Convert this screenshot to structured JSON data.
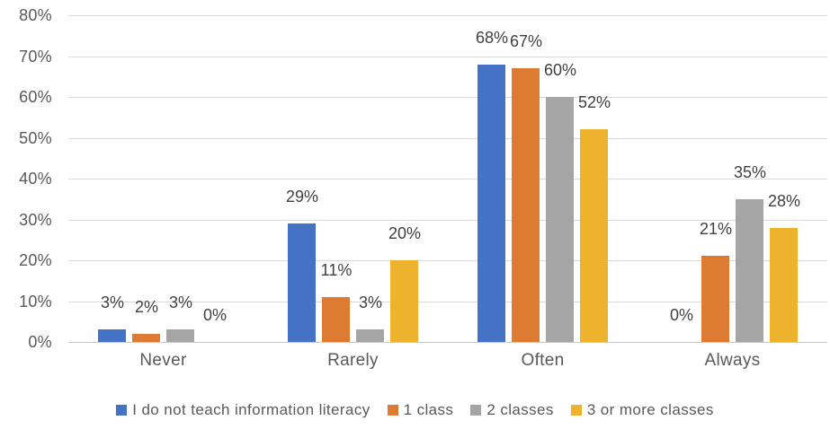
{
  "chart_data": {
    "type": "bar",
    "title": "",
    "xlabel": "",
    "ylabel": "",
    "categories": [
      "Never",
      "Rarely",
      "Often",
      "Always"
    ],
    "series": [
      {
        "name": "I do not teach information literacy",
        "color": "#4472C4",
        "values": [
          3,
          29,
          68,
          0
        ]
      },
      {
        "name": "1 class",
        "color": "#DE7B33",
        "values": [
          2,
          11,
          67,
          21
        ]
      },
      {
        "name": "2 classes",
        "color": "#A5A5A5",
        "values": [
          3,
          3,
          60,
          35
        ]
      },
      {
        "name": "3 or more classes",
        "color": "#EDB32C",
        "values": [
          0,
          20,
          52,
          28
        ]
      }
    ],
    "data_labels": [
      [
        "3%",
        "29%",
        "68%",
        "0%"
      ],
      [
        "2%",
        "11%",
        "67%",
        "21%"
      ],
      [
        "3%",
        "3%",
        "60%",
        "35%"
      ],
      [
        "0%",
        "20%",
        "52%",
        "28%"
      ]
    ],
    "ytick_labels": [
      "0%",
      "10%",
      "20%",
      "30%",
      "40%",
      "50%",
      "60%",
      "70%",
      "80%"
    ],
    "ylim": [
      0,
      80
    ],
    "ytick_step": 10,
    "grid": true,
    "legend_position": "bottom",
    "colors": {
      "gridline": "#d9d9d9",
      "axis_line": "#c9c9c9",
      "axis_text": "#595959",
      "data_label_text": "#404040"
    }
  }
}
